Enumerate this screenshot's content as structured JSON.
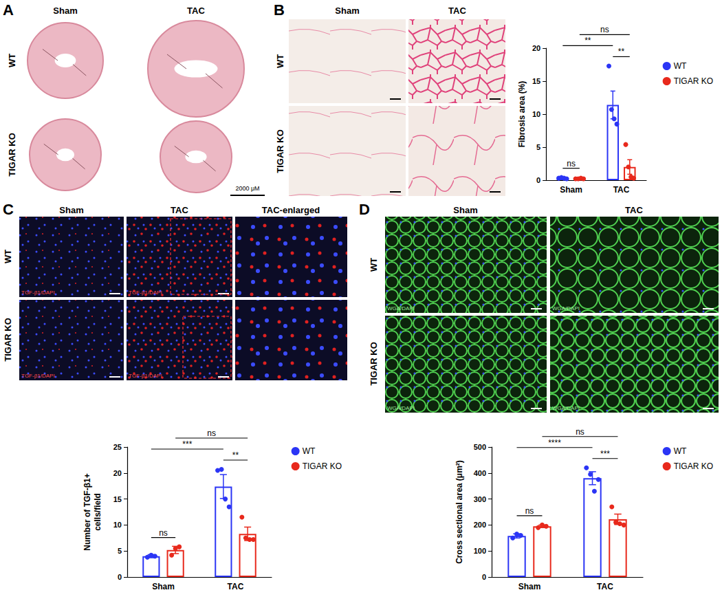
{
  "panels": {
    "A": {
      "label": "A",
      "columns": [
        "Sham",
        "TAC"
      ],
      "rows": [
        "WT",
        "TIGAR KO"
      ],
      "scale_bar": "2000 μM"
    },
    "B": {
      "label": "B",
      "columns": [
        "Sham",
        "TAC"
      ],
      "rows": [
        "WT",
        "TIGAR KO"
      ]
    },
    "C": {
      "label": "C",
      "columns": [
        "Sham",
        "TAC",
        "TAC-enlarged"
      ],
      "rows": [
        "WT",
        "TIGAR KO"
      ],
      "stain": "TGF-β1/DAPI"
    },
    "D": {
      "label": "D",
      "columns": [
        "Sham",
        "TAC"
      ],
      "rows": [
        "WT",
        "TIGAR KO"
      ],
      "stain": "WGA/DAPI"
    }
  },
  "chart_data": [
    {
      "type": "bar",
      "ylabel": "Fibrosis area (%)",
      "categories": [
        "Sham",
        "TAC"
      ],
      "series": [
        {
          "name": "WT",
          "color": "#2b35f5",
          "values": [
            0.3,
            11.4
          ],
          "errors": [
            0.05,
            2.1
          ],
          "points": [
            [
              0.3,
              0.4,
              0.3,
              0.2
            ],
            [
              17.3,
              10.7,
              9.3,
              8.5
            ]
          ]
        },
        {
          "name": "TIGAR KO",
          "color": "#e8291c",
          "values": [
            0.2,
            2.0
          ],
          "errors": [
            0.03,
            1.1
          ],
          "points": [
            [
              0.2,
              0.2,
              0.3,
              0.2
            ],
            [
              5.4,
              2.0,
              0.5,
              0.3
            ]
          ]
        }
      ],
      "ylim": [
        0,
        20
      ],
      "yticks": [
        0,
        5,
        10,
        15,
        20
      ],
      "legend": "right",
      "annotations": [
        {
          "label": "ns",
          "from": {
            "category": "Sham",
            "series": "WT"
          },
          "to": {
            "category": "Sham",
            "series": "TIGAR KO"
          }
        },
        {
          "label": "**",
          "from": {
            "category": "TAC",
            "series": "WT"
          },
          "to": {
            "category": "TAC",
            "series": "TIGAR KO"
          }
        },
        {
          "label": "**",
          "from": {
            "category": "Sham",
            "series": "WT"
          },
          "to": {
            "category": "TAC",
            "series": "WT"
          }
        },
        {
          "label": "ns",
          "from": {
            "category": "Sham",
            "series": "TIGAR KO"
          },
          "to": {
            "category": "TAC",
            "series": "TIGAR KO"
          }
        }
      ]
    },
    {
      "type": "bar",
      "ylabel": "Number of TGF-β1+\ncells/field",
      "categories": [
        "Sham",
        "TAC"
      ],
      "series": [
        {
          "name": "WT",
          "color": "#2b35f5",
          "values": [
            4.0,
            17.4
          ],
          "errors": [
            0.3,
            2.3
          ],
          "points": [
            [
              3.8,
              4.2,
              4.0
            ],
            [
              20.5,
              20.7,
              15.0,
              13.5
            ]
          ]
        },
        {
          "name": "TIGAR KO",
          "color": "#e8291c",
          "values": [
            5.2,
            8.3
          ],
          "errors": [
            0.7,
            1.3
          ],
          "points": [
            [
              4.2,
              5.5,
              5.8
            ],
            [
              11.5,
              7.5,
              7.2,
              7.2
            ]
          ]
        }
      ],
      "ylim": [
        0,
        25
      ],
      "yticks": [
        0,
        5,
        10,
        15,
        20,
        25
      ],
      "legend": "right",
      "annotations": [
        {
          "label": "ns",
          "from": {
            "category": "Sham",
            "series": "WT"
          },
          "to": {
            "category": "Sham",
            "series": "TIGAR KO"
          }
        },
        {
          "label": "**",
          "from": {
            "category": "TAC",
            "series": "WT"
          },
          "to": {
            "category": "TAC",
            "series": "TIGAR KO"
          }
        },
        {
          "label": "***",
          "from": {
            "category": "Sham",
            "series": "WT"
          },
          "to": {
            "category": "TAC",
            "series": "WT"
          }
        },
        {
          "label": "ns",
          "from": {
            "category": "Sham",
            "series": "TIGAR KO"
          },
          "to": {
            "category": "TAC",
            "series": "TIGAR KO"
          }
        }
      ]
    },
    {
      "type": "bar",
      "ylabel": "Cross sectional area (μm²)",
      "categories": [
        "Sham",
        "TAC"
      ],
      "series": [
        {
          "name": "WT",
          "color": "#2b35f5",
          "values": [
            158,
            380
          ],
          "errors": [
            8,
            25
          ],
          "points": [
            [
              150,
              165,
              160
            ],
            [
              420,
              395,
              330,
              375
            ]
          ]
        },
        {
          "name": "TIGAR KO",
          "color": "#e8291c",
          "values": [
            195,
            222
          ],
          "errors": [
            5,
            20
          ],
          "points": [
            [
              190,
              200,
              195
            ],
            [
              270,
              210,
              205,
              200
            ]
          ]
        }
      ],
      "ylim": [
        0,
        500
      ],
      "yticks": [
        0,
        100,
        200,
        300,
        400,
        500
      ],
      "legend": "right",
      "annotations": [
        {
          "label": "ns",
          "from": {
            "category": "Sham",
            "series": "WT"
          },
          "to": {
            "category": "Sham",
            "series": "TIGAR KO"
          }
        },
        {
          "label": "***",
          "from": {
            "category": "TAC",
            "series": "WT"
          },
          "to": {
            "category": "TAC",
            "series": "TIGAR KO"
          }
        },
        {
          "label": "****",
          "from": {
            "category": "Sham",
            "series": "WT"
          },
          "to": {
            "category": "TAC",
            "series": "WT"
          }
        },
        {
          "label": "ns",
          "from": {
            "category": "Sham",
            "series": "TIGAR KO"
          },
          "to": {
            "category": "TAC",
            "series": "TIGAR KO"
          }
        }
      ]
    }
  ]
}
